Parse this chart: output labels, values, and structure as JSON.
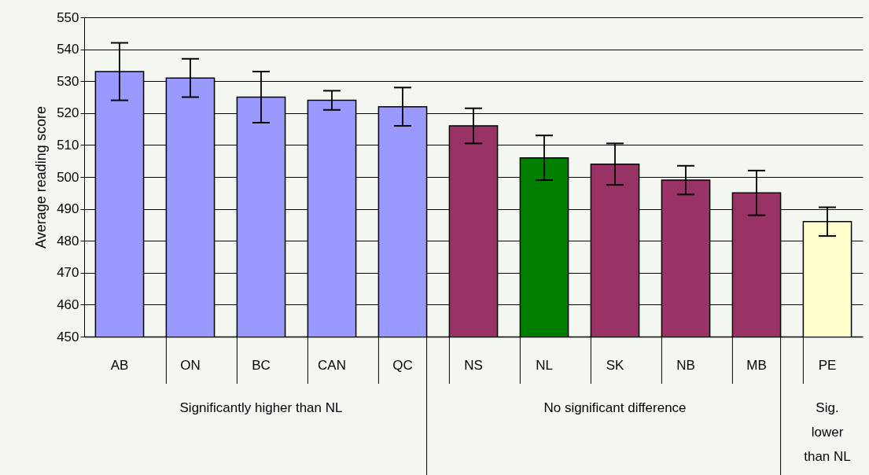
{
  "chart_data": {
    "type": "bar",
    "ylabel": "Average reading score",
    "categories": [
      "AB",
      "ON",
      "BC",
      "CAN",
      "QC",
      "NS",
      "NL",
      "SK",
      "NB",
      "MB",
      "PE"
    ],
    "values": [
      533,
      531,
      525,
      524,
      522,
      516,
      506,
      504,
      499,
      495,
      486
    ],
    "errors": [
      9,
      6,
      8,
      3,
      6,
      5.5,
      7,
      6.5,
      4.5,
      7,
      4.5
    ],
    "colors": [
      "#9999ff",
      "#9999ff",
      "#9999ff",
      "#9999ff",
      "#9999ff",
      "#993366",
      "#007f00",
      "#993366",
      "#993366",
      "#993366",
      "#ffffcc"
    ],
    "ylim": [
      450,
      550
    ],
    "yticks": [
      450,
      460,
      470,
      480,
      490,
      500,
      510,
      520,
      530,
      540,
      550
    ],
    "grid": "y",
    "annotations": [
      "Significantly higher than NL",
      "No significant difference",
      "Sig. lower than NL"
    ]
  }
}
